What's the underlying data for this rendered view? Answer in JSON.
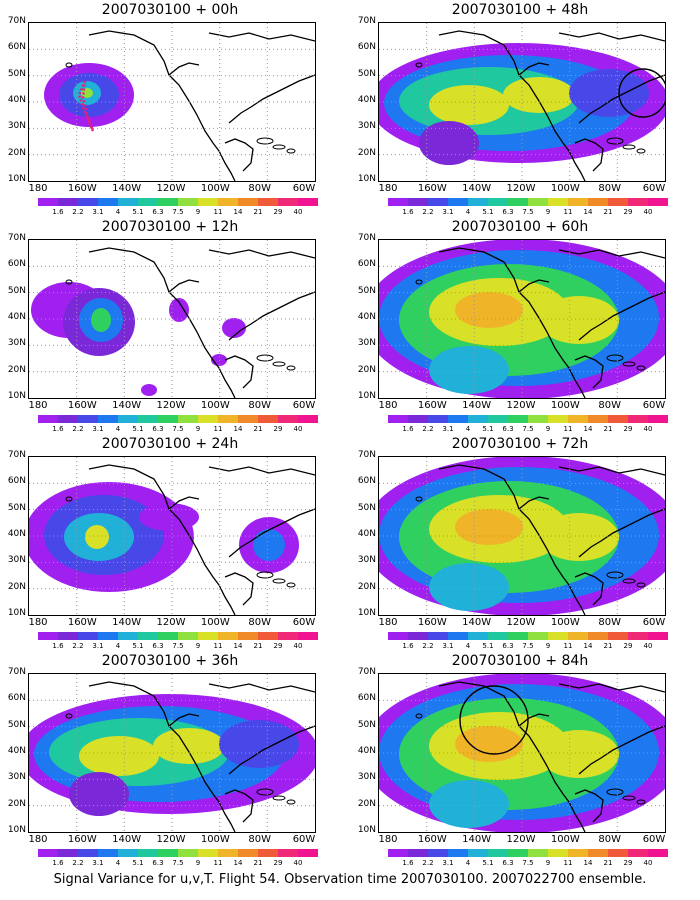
{
  "footer": "Signal Variance for u,v,T. Flight 54. Observation time 2007030100. 2007022700 ensemble.",
  "lat_labels": [
    "70N",
    "60N",
    "50N",
    "40N",
    "30N",
    "20N",
    "10N"
  ],
  "lon_labels": [
    "180",
    "160W",
    "140W",
    "120W",
    "100W",
    "80W",
    "60W"
  ],
  "colorbar": {
    "labels": [
      "1.6",
      "2.2",
      "3.1",
      "4",
      "5.1",
      "6.3",
      "7.5",
      "9",
      "11",
      "14",
      "21",
      "29",
      "40"
    ],
    "colors": [
      "#a020f0",
      "#7a28d8",
      "#4848e8",
      "#1e78f0",
      "#20b0d8",
      "#20c8a0",
      "#30d060",
      "#90e040",
      "#d8e028",
      "#f0b428",
      "#f08a28",
      "#f05a38",
      "#f02878",
      "#f01490"
    ]
  },
  "panels": [
    {
      "title": "2007030100 + 00h",
      "level": 0
    },
    {
      "title": "2007030100 + 48h",
      "level": 2
    },
    {
      "title": "2007030100 + 12h",
      "level": 0
    },
    {
      "title": "2007030100 + 60h",
      "level": 3
    },
    {
      "title": "2007030100 + 24h",
      "level": 1
    },
    {
      "title": "2007030100 + 72h",
      "level": 3
    },
    {
      "title": "2007030100 + 36h",
      "level": 2
    },
    {
      "title": "2007030100 + 84h",
      "level": 3
    }
  ]
}
